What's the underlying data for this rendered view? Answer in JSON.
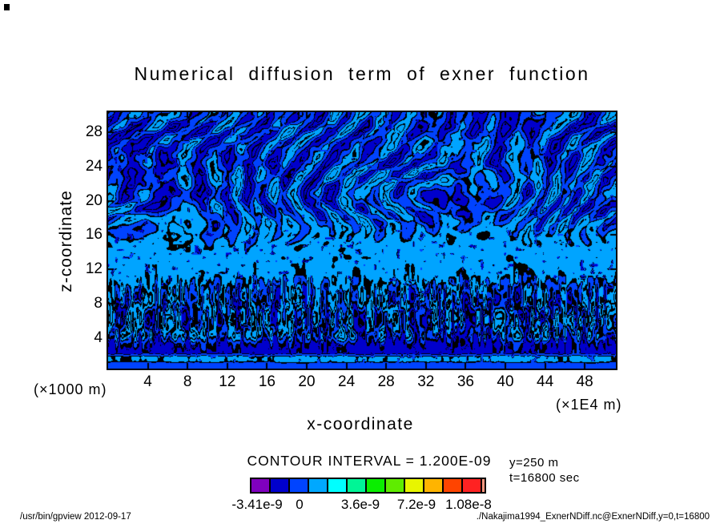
{
  "title": "Numerical diffusion term of exner function",
  "axes": {
    "x": {
      "label": "x-coordinate",
      "unit": "(×1E4 m)",
      "ticks": [
        4,
        8,
        12,
        16,
        20,
        24,
        28,
        32,
        36,
        40,
        44,
        48
      ]
    },
    "y": {
      "label": "z-coordinate",
      "unit": "(×1000 m)",
      "ticks": [
        28,
        24,
        20,
        16,
        12,
        8,
        4
      ]
    }
  },
  "legend": {
    "contour_interval_label": "CONTOUR INTERVAL = 1.200E-09",
    "colorbar": {
      "colors": [
        "#7F00BE",
        "#0000CC",
        "#0044FF",
        "#00A8FF",
        "#00FFFF",
        "#00F596",
        "#0AEE00",
        "#5FEC00",
        "#E8F500",
        "#FFB400",
        "#FF4400",
        "#FF2222"
      ],
      "end_sliver": "#FF9980",
      "tick_labels": [
        "-3.41e-9",
        "0",
        "3.6e-9",
        "7.2e-9",
        "1.08e-8"
      ]
    }
  },
  "annotations": {
    "y_slice": "y=250 m",
    "t_slice": "t=16800 sec"
  },
  "footer": {
    "left": "/usr/bin/gpview  2012-09-17",
    "right": "./Nakajima1994_ExnerNDiff.nc@ExnerNDiff,y=0,t=16800"
  },
  "chart_data": {
    "type": "heatmap",
    "title": "Numerical diffusion term of exner function",
    "xlabel": "x-coordinate",
    "x_unit_factor": "×1E4 m",
    "x_ticks": [
      4,
      8,
      12,
      16,
      20,
      24,
      28,
      32,
      36,
      40,
      44,
      48
    ],
    "x_range": [
      0,
      51.2
    ],
    "ylabel": "z-coordinate",
    "y_unit_factor": "×1000 m",
    "y_ticks": [
      4,
      8,
      12,
      16,
      20,
      24,
      28
    ],
    "y_range": [
      0,
      30.2
    ],
    "contour_interval": 1.2e-09,
    "value_ticks": [
      -3.41e-09,
      0,
      3.6e-09,
      7.2e-09,
      1.08e-08
    ],
    "value_range": [
      -3.41e-09,
      1.08e-08
    ],
    "grid": false,
    "legend_position": "bottom-center",
    "slice": {
      "y": "y=250 m",
      "t": "t=16800 sec"
    },
    "plot_tones": [
      "#0000CC",
      "#0043FF",
      "#00A4FF"
    ],
    "contour_line_color": "#000000",
    "texture_profile": [
      [
        0.0,
        1.5,
        0.9,
        1.5,
        0.0,
        0.1
      ],
      [
        0.06,
        1.4,
        1.1,
        1.8,
        0.0,
        0.15
      ],
      [
        0.3,
        1.5,
        1.1,
        1.9,
        0.0,
        0.15
      ],
      [
        0.43,
        1.75,
        0.9,
        1.6,
        0.0,
        0.2
      ],
      [
        0.49,
        2.35,
        0.4,
        1.0,
        0.0,
        0.3
      ],
      [
        0.55,
        2.5,
        0.0,
        0.55,
        0.0,
        0.35
      ],
      [
        0.63,
        2.45,
        0.0,
        0.6,
        0.2,
        0.35
      ],
      [
        0.672,
        2.1,
        0.0,
        0.85,
        1.6,
        0.25
      ],
      [
        0.74,
        1.9,
        0.0,
        1.0,
        2.4,
        0.2
      ],
      [
        0.87,
        1.9,
        0.0,
        1.0,
        2.2,
        0.2
      ],
      [
        0.902,
        0.85,
        0.0,
        0.5,
        0.7,
        0.3
      ],
      [
        0.938,
        0.7,
        0.0,
        0.5,
        0.4,
        0.3
      ],
      [
        0.952,
        2.3,
        0.0,
        0.4,
        0.2,
        0.2
      ],
      [
        0.968,
        2.3,
        0.0,
        0.4,
        0.2,
        0.2
      ],
      [
        0.982,
        1.5,
        0.0,
        0.3,
        0.0,
        0.0
      ],
      [
        1.0,
        1.5,
        0.0,
        0.3,
        0.0,
        0.0
      ]
    ]
  }
}
